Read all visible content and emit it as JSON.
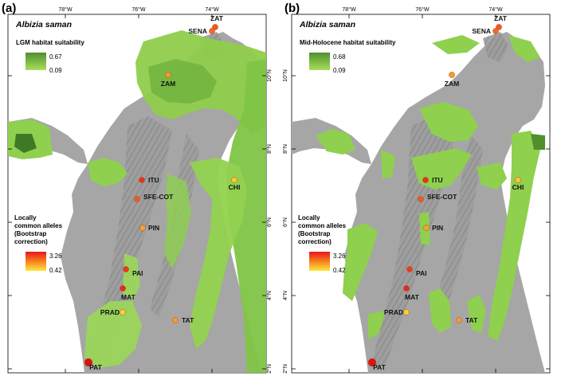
{
  "panels": [
    {
      "id": "a",
      "letter": "(a)",
      "species": "Albizia saman",
      "habitat_title": "LGM habitat suitability",
      "habitat_max": "0.67",
      "habitat_min": "0.09",
      "allele_title": [
        "Locally",
        "common alleles",
        "(Bootstrap",
        "correction)"
      ],
      "allele_max": "3.26",
      "allele_min": "0.42",
      "lon_labels": [
        "78°W",
        "76°W",
        "74°W"
      ],
      "lat_labels": [
        "10°N",
        "8°N",
        "6°N",
        "4°N",
        "2°N"
      ],
      "sites": [
        {
          "code": "ZAT",
          "color": "#f2552a"
        },
        {
          "code": "SENA",
          "color": "#f06a2a"
        },
        {
          "code": "ZAM",
          "color": "#f59a2c"
        },
        {
          "code": "ITU",
          "color": "#e8321e"
        },
        {
          "code": "SFE-COT",
          "color": "#ee5a26"
        },
        {
          "code": "CHI",
          "color": "#f7c83a"
        },
        {
          "code": "PIN",
          "color": "#f5a22e"
        },
        {
          "code": "PAI",
          "color": "#e93a22"
        },
        {
          "code": "MAT",
          "color": "#e42a1c"
        },
        {
          "code": "PRAD",
          "color": "#f7d040"
        },
        {
          "code": "TAT",
          "color": "#f59a30"
        },
        {
          "code": "PAT",
          "color": "#d81414"
        }
      ]
    },
    {
      "id": "b",
      "letter": "(b)",
      "species": "Albizia saman",
      "habitat_title": "Mid-Holocene habitat suitability",
      "habitat_max": "0.68",
      "habitat_min": "0.09",
      "allele_title": [
        "Locally",
        "common alleles",
        "(Bootstrap",
        "correction)"
      ],
      "allele_max": "3.26",
      "allele_min": "0.42",
      "lon_labels": [
        "78°W",
        "76°W",
        "74°W"
      ],
      "lat_labels": [
        "10°N",
        "8°N",
        "6°N",
        "4°N",
        "2°N"
      ],
      "sites": [
        {
          "code": "ZAT",
          "color": "#f2552a"
        },
        {
          "code": "SENA",
          "color": "#f06a2a"
        },
        {
          "code": "ZAM",
          "color": "#f59a2c"
        },
        {
          "code": "ITU",
          "color": "#e8321e"
        },
        {
          "code": "SFE-COT",
          "color": "#ee5a26"
        },
        {
          "code": "CHI",
          "color": "#f7c83a"
        },
        {
          "code": "PIN",
          "color": "#f5a22e"
        },
        {
          "code": "PAI",
          "color": "#e93a22"
        },
        {
          "code": "MAT",
          "color": "#e42a1c"
        },
        {
          "code": "PRAD",
          "color": "#f7d040"
        },
        {
          "code": "TAT",
          "color": "#f59a30"
        },
        {
          "code": "PAT",
          "color": "#d81414"
        }
      ]
    }
  ],
  "colors": {
    "sea": "#ffffff",
    "land": "#a6a6a6",
    "relief": "#7d7d7d",
    "suitability_low": "#a8df5a",
    "suitability_high": "#4f8f2e",
    "allele_high": "#e8141e",
    "allele_low": "#ffe640"
  }
}
